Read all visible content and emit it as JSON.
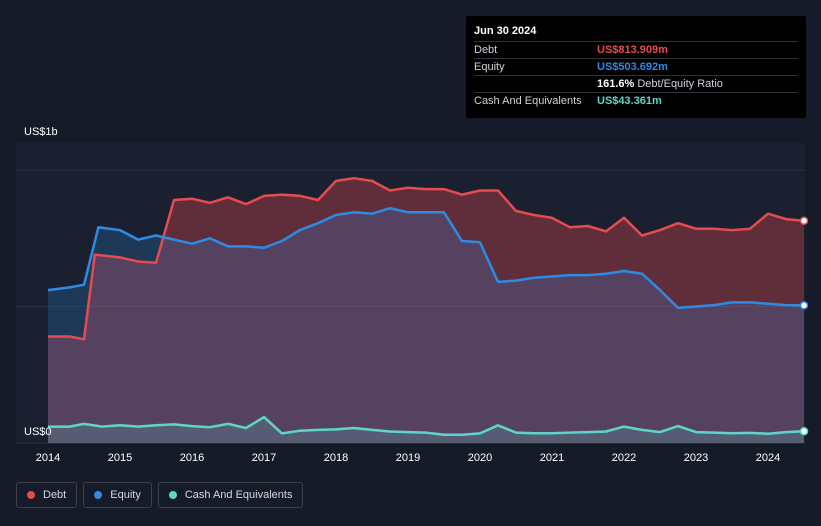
{
  "tooltip": {
    "date": "Jun 30 2024",
    "rows": [
      {
        "label": "Debt",
        "value": "US$813.909m",
        "color": "#e64b4f"
      },
      {
        "label": "Equity",
        "value": "US$503.692m",
        "color": "#2e8be4"
      },
      {
        "label": "",
        "value": "161.6%",
        "suffix": "Debt/Equity Ratio",
        "color": "#ffffff"
      },
      {
        "label": "Cash And Equivalents",
        "value": "US$43.361m",
        "color": "#5ed6c5"
      }
    ]
  },
  "legend": [
    {
      "label": "Debt",
      "color": "#e64b4f"
    },
    {
      "label": "Equity",
      "color": "#2e8be4"
    },
    {
      "label": "Cash And Equivalents",
      "color": "#5ed6c5"
    }
  ],
  "chart_data": {
    "type": "area",
    "ylabel_top": "US$1b",
    "ylabel_bottom": "US$0",
    "ylim": [
      0,
      1100
    ],
    "xlim": [
      2014,
      2024.5
    ],
    "x_ticks": [
      "2014",
      "2015",
      "2016",
      "2017",
      "2018",
      "2019",
      "2020",
      "2021",
      "2022",
      "2023",
      "2024"
    ],
    "grid": true,
    "series": [
      {
        "name": "Debt",
        "color": "#e64b4f",
        "points": [
          [
            2014,
            390
          ],
          [
            2014.3,
            390
          ],
          [
            2014.5,
            380
          ],
          [
            2014.65,
            690
          ],
          [
            2015,
            680
          ],
          [
            2015.25,
            665
          ],
          [
            2015.5,
            660
          ],
          [
            2015.75,
            890
          ],
          [
            2016,
            895
          ],
          [
            2016.25,
            880
          ],
          [
            2016.5,
            900
          ],
          [
            2016.75,
            875
          ],
          [
            2017,
            905
          ],
          [
            2017.25,
            910
          ],
          [
            2017.5,
            905
          ],
          [
            2017.75,
            890
          ],
          [
            2018,
            960
          ],
          [
            2018.25,
            970
          ],
          [
            2018.5,
            960
          ],
          [
            2018.75,
            925
          ],
          [
            2019,
            935
          ],
          [
            2019.25,
            930
          ],
          [
            2019.5,
            930
          ],
          [
            2019.75,
            910
          ],
          [
            2020,
            925
          ],
          [
            2020.25,
            925
          ],
          [
            2020.5,
            850
          ],
          [
            2020.75,
            835
          ],
          [
            2021,
            825
          ],
          [
            2021.25,
            790
          ],
          [
            2021.5,
            795
          ],
          [
            2021.75,
            775
          ],
          [
            2022,
            825
          ],
          [
            2022.25,
            760
          ],
          [
            2022.5,
            780
          ],
          [
            2022.75,
            805
          ],
          [
            2023,
            785
          ],
          [
            2023.25,
            785
          ],
          [
            2023.5,
            780
          ],
          [
            2023.75,
            785
          ],
          [
            2024,
            840
          ],
          [
            2024.25,
            820
          ],
          [
            2024.5,
            814
          ]
        ]
      },
      {
        "name": "Equity",
        "color": "#2e8be4",
        "points": [
          [
            2014,
            560
          ],
          [
            2014.3,
            570
          ],
          [
            2014.5,
            580
          ],
          [
            2014.7,
            790
          ],
          [
            2015,
            780
          ],
          [
            2015.25,
            745
          ],
          [
            2015.5,
            760
          ],
          [
            2015.75,
            745
          ],
          [
            2016,
            730
          ],
          [
            2016.25,
            750
          ],
          [
            2016.5,
            720
          ],
          [
            2016.75,
            720
          ],
          [
            2017,
            715
          ],
          [
            2017.25,
            740
          ],
          [
            2017.5,
            780
          ],
          [
            2017.75,
            805
          ],
          [
            2018,
            835
          ],
          [
            2018.25,
            845
          ],
          [
            2018.5,
            840
          ],
          [
            2018.75,
            860
          ],
          [
            2019,
            845
          ],
          [
            2019.25,
            845
          ],
          [
            2019.5,
            845
          ],
          [
            2019.75,
            740
          ],
          [
            2020,
            735
          ],
          [
            2020.25,
            590
          ],
          [
            2020.5,
            595
          ],
          [
            2020.75,
            605
          ],
          [
            2021,
            610
          ],
          [
            2021.25,
            615
          ],
          [
            2021.5,
            615
          ],
          [
            2021.75,
            620
          ],
          [
            2022,
            630
          ],
          [
            2022.25,
            620
          ],
          [
            2022.5,
            560
          ],
          [
            2022.75,
            495
          ],
          [
            2023,
            500
          ],
          [
            2023.25,
            505
          ],
          [
            2023.5,
            515
          ],
          [
            2023.75,
            515
          ],
          [
            2024,
            510
          ],
          [
            2024.25,
            505
          ],
          [
            2024.5,
            504
          ]
        ]
      },
      {
        "name": "Cash And Equivalents",
        "color": "#5ed6c5",
        "points": [
          [
            2014,
            60
          ],
          [
            2014.3,
            60
          ],
          [
            2014.5,
            70
          ],
          [
            2014.75,
            60
          ],
          [
            2015,
            65
          ],
          [
            2015.25,
            60
          ],
          [
            2015.5,
            65
          ],
          [
            2015.75,
            68
          ],
          [
            2016,
            62
          ],
          [
            2016.25,
            58
          ],
          [
            2016.5,
            70
          ],
          [
            2016.75,
            55
          ],
          [
            2017,
            95
          ],
          [
            2017.25,
            35
          ],
          [
            2017.5,
            45
          ],
          [
            2017.75,
            48
          ],
          [
            2018,
            50
          ],
          [
            2018.25,
            55
          ],
          [
            2018.5,
            48
          ],
          [
            2018.75,
            42
          ],
          [
            2019,
            40
          ],
          [
            2019.25,
            38
          ],
          [
            2019.5,
            30
          ],
          [
            2019.75,
            30
          ],
          [
            2020,
            35
          ],
          [
            2020.25,
            65
          ],
          [
            2020.5,
            38
          ],
          [
            2020.75,
            36
          ],
          [
            2021,
            36
          ],
          [
            2021.25,
            38
          ],
          [
            2021.5,
            40
          ],
          [
            2021.75,
            42
          ],
          [
            2022,
            60
          ],
          [
            2022.25,
            48
          ],
          [
            2022.5,
            40
          ],
          [
            2022.75,
            62
          ],
          [
            2023,
            40
          ],
          [
            2023.25,
            38
          ],
          [
            2023.5,
            36
          ],
          [
            2023.75,
            37
          ],
          [
            2024,
            34
          ],
          [
            2024.25,
            40
          ],
          [
            2024.5,
            43
          ]
        ]
      }
    ]
  }
}
